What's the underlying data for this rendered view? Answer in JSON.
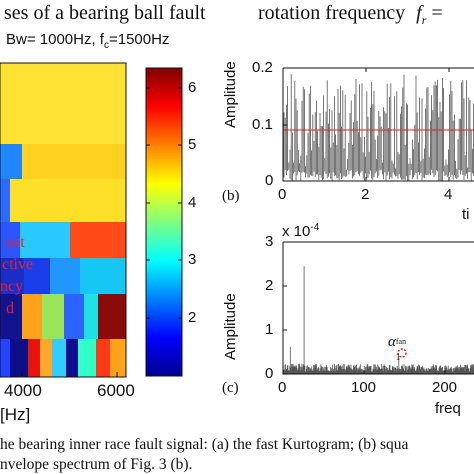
{
  "left_panel": {
    "title_line1": "ses of a bearing ball fault",
    "title_line2": "Bw= 1000Hz, f",
    "title_sub": "c",
    "title_line2_end": "=1500Hz",
    "x_ticks": [
      "4000",
      "6000"
    ],
    "x_unit": "[Hz]",
    "overlay_text": [
      "ost",
      "ctive",
      "ncy",
      "d"
    ],
    "colorbar_ticks": [
      "6",
      "5",
      "4",
      "3",
      "2"
    ]
  },
  "right_header": {
    "text": "rotation  frequency",
    "symbol": "f",
    "symbol_sub": "r",
    "equals": " ="
  },
  "plot_b": {
    "label": "(b)",
    "ylabel": "Amplitude",
    "y_ticks": [
      "0.2",
      "0.1",
      "0"
    ],
    "x_ticks": [
      "0",
      "2",
      "4"
    ],
    "xlabel_partial": "ti"
  },
  "plot_c": {
    "label": "(c)",
    "ylabel": "Amplitude",
    "y_ticks": [
      "3",
      "2",
      "1",
      "0"
    ],
    "exponent": "x 10",
    "exponent_power": "-4",
    "x_ticks": [
      "0",
      "100",
      "200"
    ],
    "xlabel_partial": "freq",
    "annotation": "α",
    "annotation_sub": "1",
    "annotation_sup": "fan"
  },
  "caption": {
    "line1": "he bearing inner race fault signal: (a) the fast Kurtogram; (b) squa",
    "line2": "nvelope spectrum of Fig. 3 (b)."
  },
  "chart_data": [
    {
      "type": "heatmap",
      "title": "ses of a bearing ball fault",
      "subtitle": "Bw= 1000Hz, fc=1500Hz",
      "x_ticks": [
        4000,
        6000
      ],
      "xlabel": "[Hz]",
      "colorbar_range": [
        1.4,
        6.8
      ],
      "colorbar_ticks": [
        6,
        5,
        4,
        3,
        2
      ]
    },
    {
      "type": "line",
      "ylabel": "Amplitude",
      "y_ticks": [
        0.2,
        0.1,
        0
      ],
      "x_ticks": [
        0,
        2,
        4
      ],
      "ylim": [
        0,
        0.2
      ],
      "reference_line": 0.085,
      "series": [
        {
          "values_range": [
            0.0,
            0.19
          ]
        }
      ]
    },
    {
      "type": "line",
      "ylabel": "Amplitude",
      "y_ticks": [
        3,
        2,
        1,
        0
      ],
      "y_scale_exponent": "x 10^-4",
      "x_ticks": [
        0,
        100,
        200
      ],
      "ylim": [
        0,
        3
      ],
      "peaks": [
        {
          "x": 26,
          "y": 2.45
        },
        {
          "x": 9,
          "y": 0.62
        },
        {
          "x": 143,
          "y": 0.35
        }
      ]
    }
  ]
}
